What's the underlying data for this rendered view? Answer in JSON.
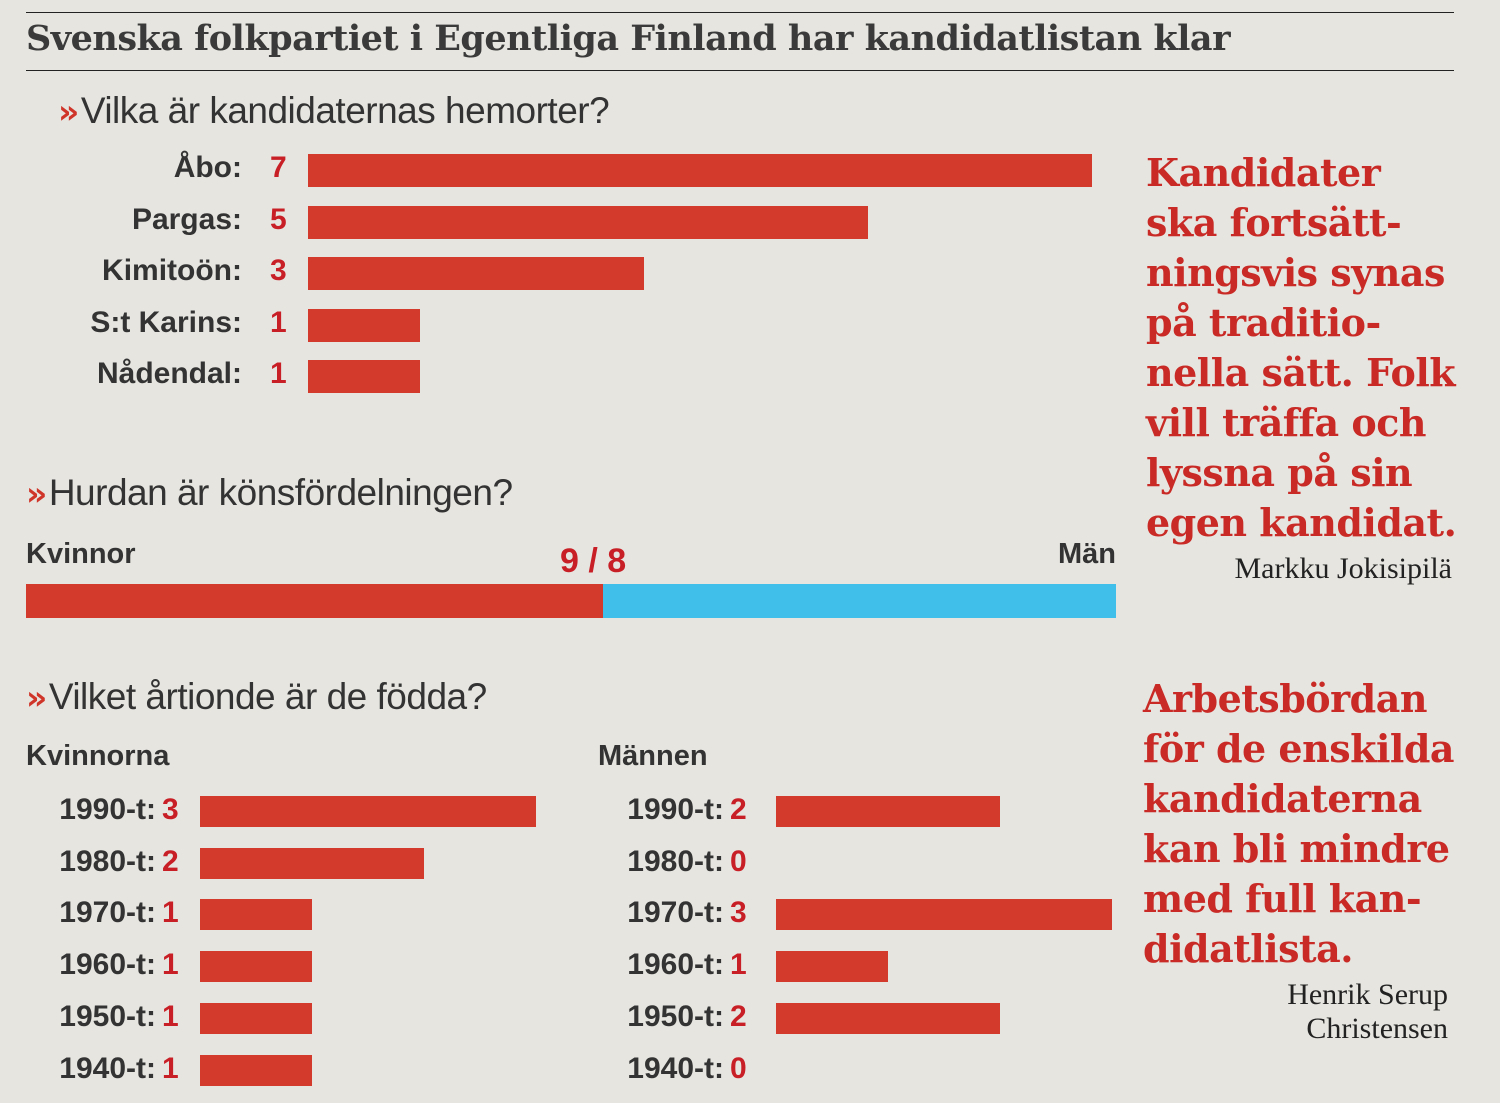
{
  "title": "Svenska folkpartiet i Egentliga Finland har kandidatlistan klar",
  "questions": {
    "hometowns": "Vilka är kandidaternas hemorter?",
    "gender": "Hurdan är könsfördelningen?",
    "decade": "Vilket årtionde är de födda?"
  },
  "quotes": [
    {
      "lines": [
        "Kandidater",
        "ska fortsätt-",
        "ningsvis synas",
        "på traditio-",
        "nella sätt. Folk",
        "vill träffa och",
        "lyssna på sin",
        "egen kandidat."
      ],
      "author": [
        "Markku Jokisipilä"
      ]
    },
    {
      "lines": [
        "Arbetsbördan",
        "för de enskilda",
        "kandidaterna",
        "kan bli mindre",
        "med full kan-",
        "didatlista."
      ],
      "author": [
        "Henrik Serup",
        "Christensen"
      ]
    }
  ],
  "colors": {
    "accent": "#d43a2c",
    "value_text": "#c81f26",
    "men": "#3fbfea",
    "background": "#e6e5e0"
  },
  "chart_data": [
    {
      "type": "bar",
      "orientation": "horizontal",
      "title": "Vilka är kandidaternas hemorter?",
      "categories": [
        "Åbo:",
        "Pargas:",
        "Kimitoön:",
        "S:t Karins:",
        "Nådendal:"
      ],
      "values": [
        7,
        5,
        3,
        1,
        1
      ]
    },
    {
      "type": "bar",
      "orientation": "horizontal",
      "stacked": true,
      "title": "Hurdan är könsfördelningen?",
      "series": [
        {
          "name": "Kvinnor",
          "values": [
            9
          ]
        },
        {
          "name": "Män",
          "values": [
            8
          ]
        }
      ],
      "label": "9 / 8"
    },
    {
      "type": "bar",
      "orientation": "horizontal",
      "title": "Vilket årtionde är de födda?",
      "panel": "Kvinnorna",
      "categories": [
        "1990-t:",
        "1980-t:",
        "1970-t:",
        "1960-t:",
        "1950-t:",
        "1940-t:"
      ],
      "values": [
        3,
        2,
        1,
        1,
        1,
        1
      ]
    },
    {
      "type": "bar",
      "orientation": "horizontal",
      "panel": "Männen",
      "categories": [
        "1990-t:",
        "1980-t:",
        "1970-t:",
        "1960-t:",
        "1950-t:",
        "1940-t:"
      ],
      "values": [
        2,
        0,
        3,
        1,
        2,
        0
      ]
    }
  ]
}
